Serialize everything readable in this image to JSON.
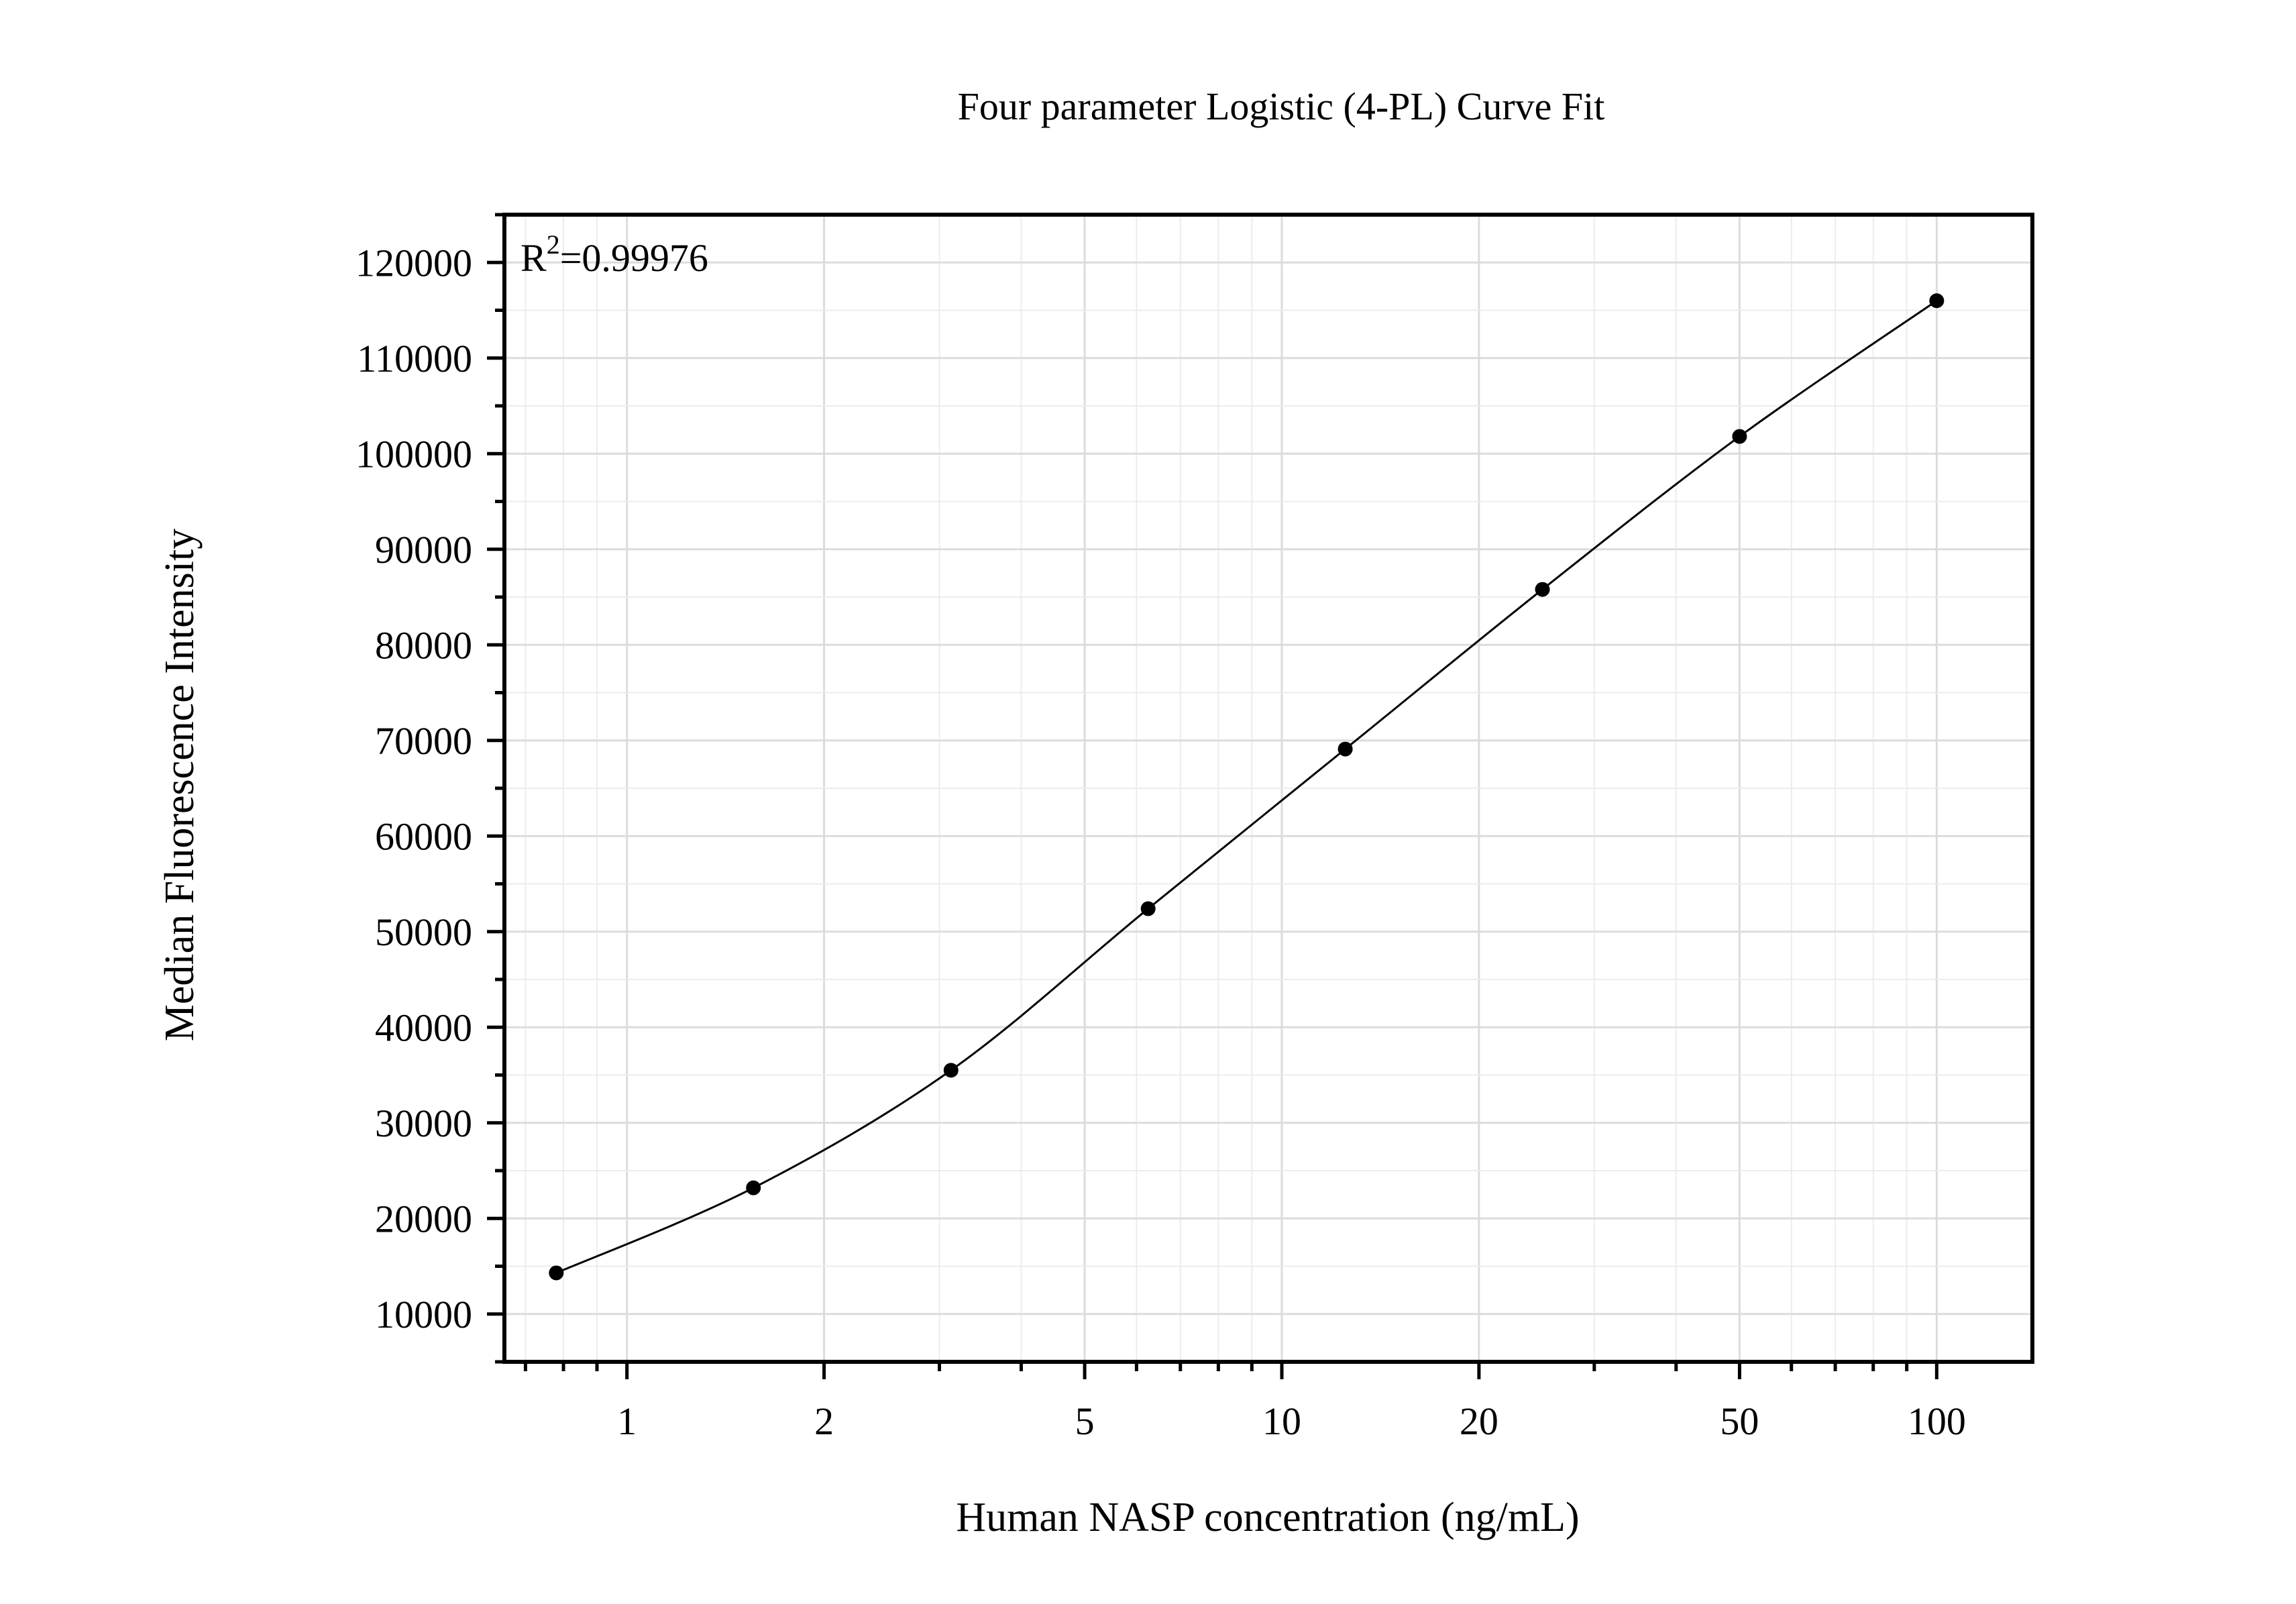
{
  "chart_data": {
    "type": "scatter",
    "title": "Four parameter Logistic (4-PL) Curve Fit",
    "xlabel": "Human NASP concentration (ng/mL)",
    "ylabel": "Median Fluorescence Intensity",
    "annotation": {
      "prefix": "R",
      "superscript": "2",
      "suffix": "=0.99976"
    },
    "x_scale": "log",
    "xlim": [
      0.65,
      140
    ],
    "ylim": [
      5000,
      125000
    ],
    "x_ticks": [
      1,
      2,
      5,
      10,
      20,
      50,
      100
    ],
    "x_tick_labels": [
      "1",
      "2",
      "5",
      "10",
      "20",
      "50",
      "100"
    ],
    "y_ticks": [
      10000,
      20000,
      30000,
      40000,
      50000,
      60000,
      70000,
      80000,
      90000,
      100000,
      110000,
      120000
    ],
    "y_tick_labels": [
      "10000",
      "20000",
      "30000",
      "40000",
      "50000",
      "60000",
      "70000",
      "80000",
      "90000",
      "100000",
      "110000",
      "120000"
    ],
    "grid": true,
    "points": {
      "x": [
        0.78,
        1.56,
        3.125,
        6.25,
        12.5,
        25,
        50,
        100
      ],
      "y": [
        14300,
        23200,
        35500,
        52400,
        69100,
        85800,
        101800,
        116000
      ]
    },
    "fit_curve": "smooth line through points"
  }
}
